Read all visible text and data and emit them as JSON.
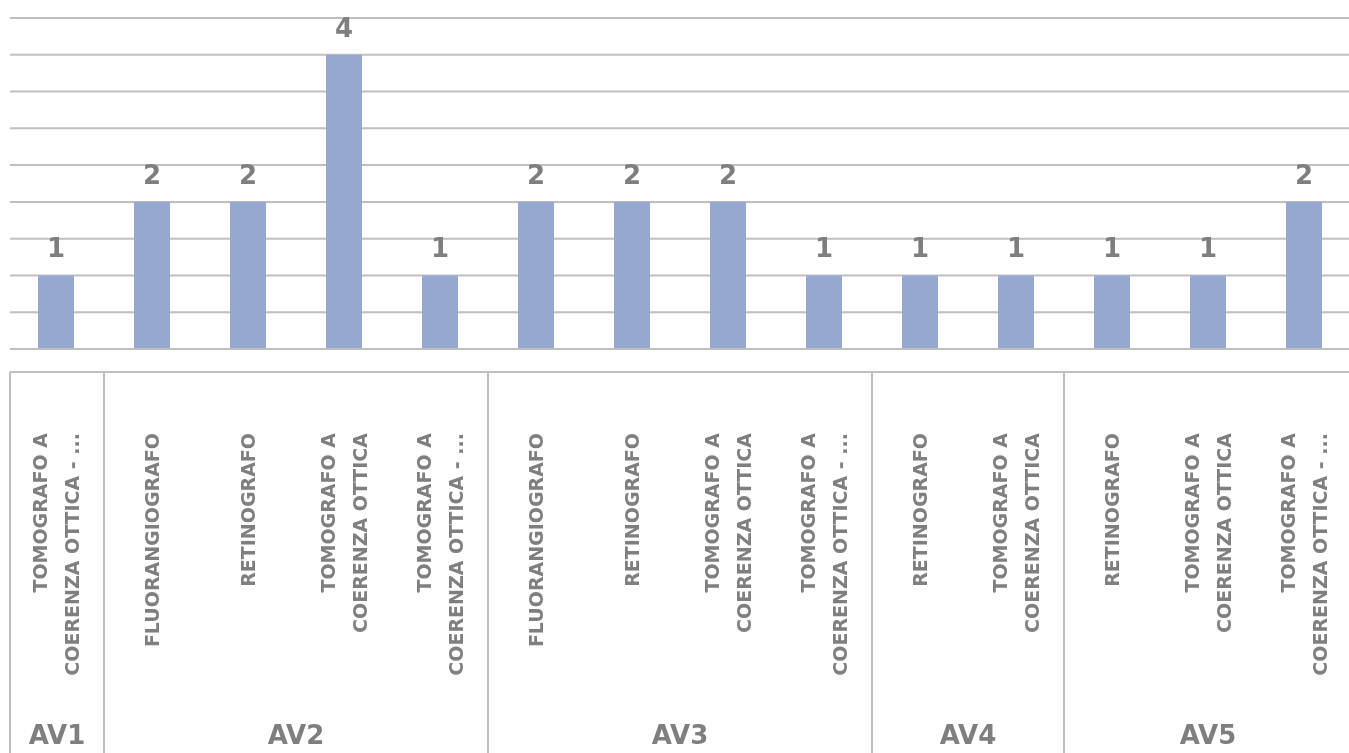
{
  "chart_data": {
    "type": "bar",
    "categories": [
      "TOMOGRAFO A COERENZA OTTICA - ...",
      "FLUORANGIOGRAFO",
      "RETINOGRAFO",
      "TOMOGRAFO A COERENZA OTTICA",
      "TOMOGRAFO A COERENZA OTTICA - ...",
      "FLUORANGIOGRAFO",
      "RETINOGRAFO",
      "TOMOGRAFO A COERENZA OTTICA",
      "TOMOGRAFO A COERENZA OTTICA - ...",
      "RETINOGRAFO",
      "TOMOGRAFO A COERENZA OTTICA",
      "RETINOGRAFO",
      "TOMOGRAFO A COERENZA OTTICA",
      "TOMOGRAFO A COERENZA OTTICA - ..."
    ],
    "values": [
      1,
      2,
      2,
      4,
      1,
      2,
      2,
      2,
      1,
      1,
      1,
      1,
      1,
      2
    ],
    "color": "#95a8d0",
    "ylim": [
      0,
      4.5
    ],
    "yticks": [
      {
        "value": 0,
        "label": null
      },
      {
        "value": 0.5,
        "label": null
      },
      {
        "value": 1,
        "label": null
      },
      {
        "value": 1.5,
        "label": null
      },
      {
        "value": 2,
        "label": null
      },
      {
        "value": 2.5,
        "label": null
      },
      {
        "value": 3,
        "label": null
      },
      {
        "value": 3.5,
        "label": null
      },
      {
        "value": 4,
        "label": null
      },
      {
        "value": 4.5,
        "label": null
      }
    ],
    "grid": "y",
    "tick_labels": "x",
    "data_labels": true,
    "annotations": [
      "AV1",
      "AV2",
      "AV3",
      "AV4",
      "AV5"
    ]
  }
}
